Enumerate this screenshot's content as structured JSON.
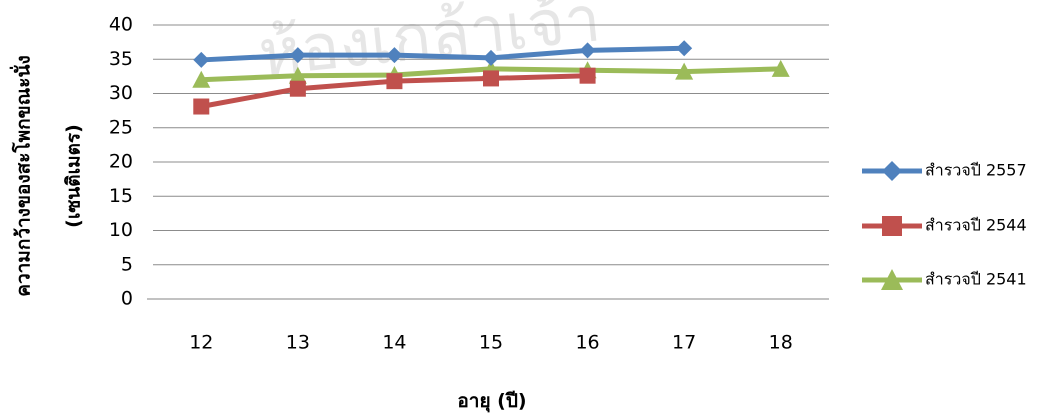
{
  "chart_data": {
    "type": "line",
    "categories": [
      "12",
      "13",
      "14",
      "15",
      "16",
      "17",
      "18"
    ],
    "series": [
      {
        "name": "สำรวจปี 2557",
        "color": "#4F81BD",
        "marker": "diamond",
        "values": [
          34.9,
          35.6,
          35.6,
          35.2,
          36.3,
          36.6,
          null
        ]
      },
      {
        "name": "สำรวจปี 2544",
        "color": "#C0504D",
        "marker": "square",
        "values": [
          28.1,
          30.7,
          31.8,
          32.2,
          32.6,
          null,
          null
        ]
      },
      {
        "name": "สำรวจปี 2541",
        "color": "#9BBB59",
        "marker": "triangle",
        "values": [
          32.0,
          32.6,
          32.7,
          33.6,
          33.4,
          33.2,
          33.6
        ]
      }
    ],
    "ylim": [
      0,
      40
    ],
    "yticks": [
      0,
      5,
      10,
      15,
      20,
      25,
      30,
      35,
      40
    ],
    "xlabel": "อายุ (ปี)",
    "ylabel_line1": "ความกว้างของสะโพกขณะนั่ง",
    "ylabel_line2": "(เซนติเมตร)",
    "grid": true,
    "legend_position": "right"
  },
  "watermark_text": "ห้องเกล้าเจ้า"
}
